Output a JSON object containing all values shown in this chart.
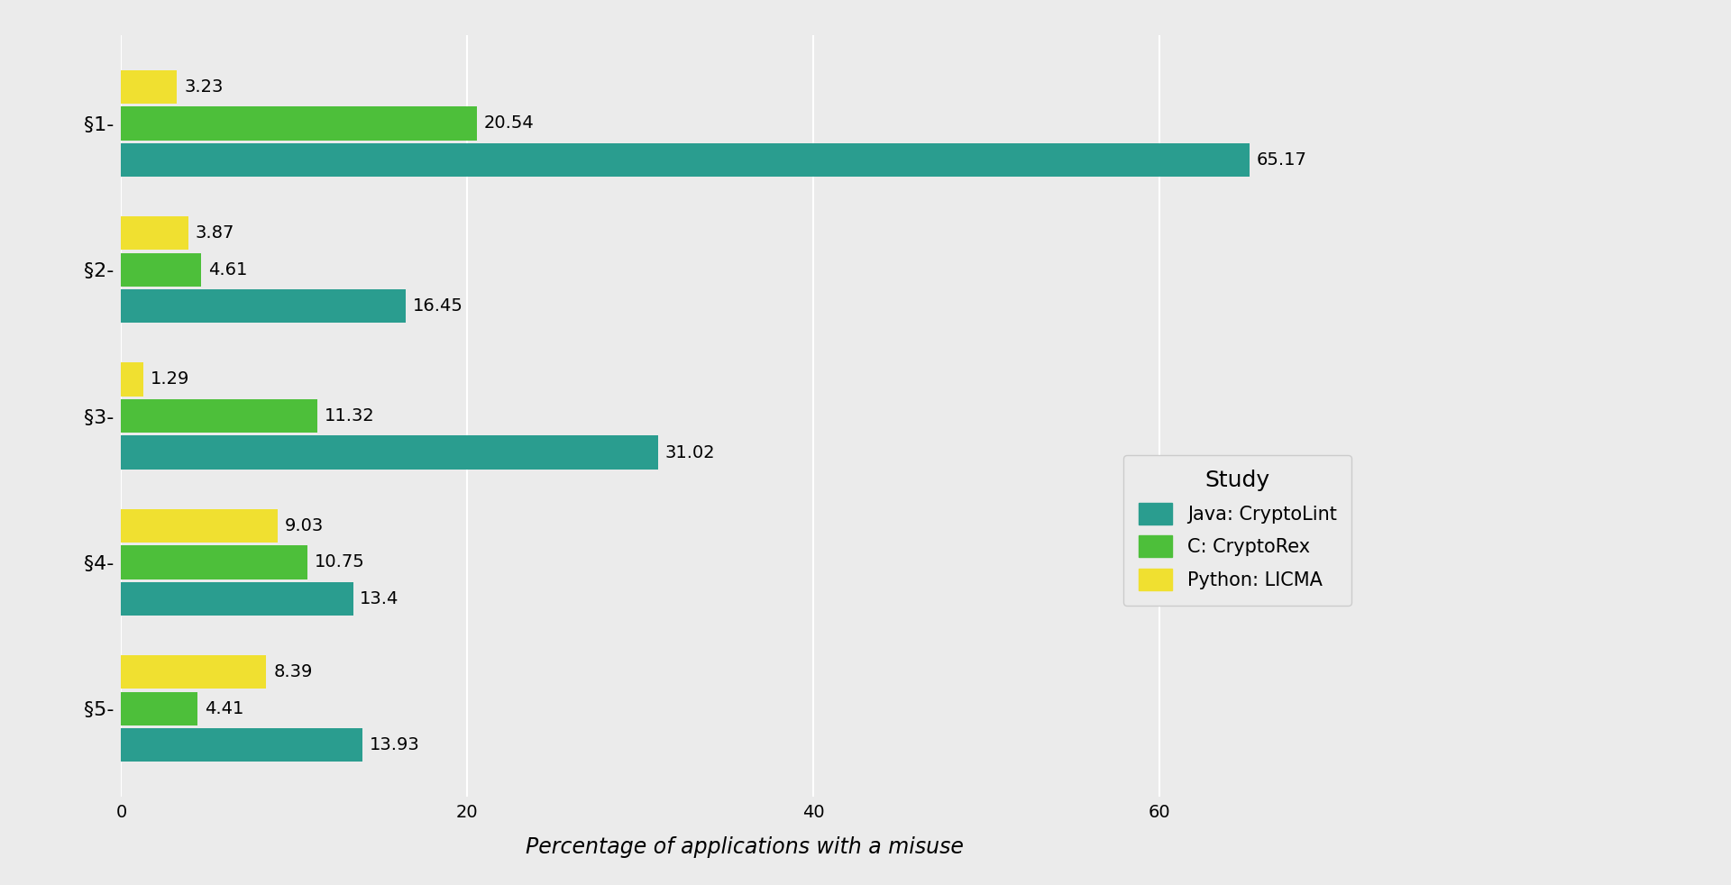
{
  "categories": [
    "§1-",
    "§2-",
    "§3-",
    "§4-",
    "§5-"
  ],
  "series_order": [
    "Java: CryptoLint",
    "C: CryptoRex",
    "Python: LICMA"
  ],
  "series": {
    "Java: CryptoLint": [
      65.17,
      16.45,
      31.02,
      13.4,
      13.93
    ],
    "C: CryptoRex": [
      20.54,
      4.61,
      11.32,
      10.75,
      4.41
    ],
    "Python: LICMA": [
      3.23,
      3.87,
      1.29,
      9.03,
      8.39
    ]
  },
  "colors": {
    "Java: CryptoLint": "#2a9d8f",
    "C: CryptoRex": "#4dbf3a",
    "Python: LICMA": "#f0e030"
  },
  "xlabel": "Percentage of applications with a misuse",
  "legend_title": "Study",
  "background_color": "#ebebeb",
  "panel_color": "#ebebeb",
  "xlim": [
    0,
    72
  ],
  "xticks": [
    0,
    20,
    40,
    60
  ],
  "label_fontsize": 15,
  "tick_fontsize": 14,
  "bar_height": 0.25,
  "annotation_fontsize": 14
}
